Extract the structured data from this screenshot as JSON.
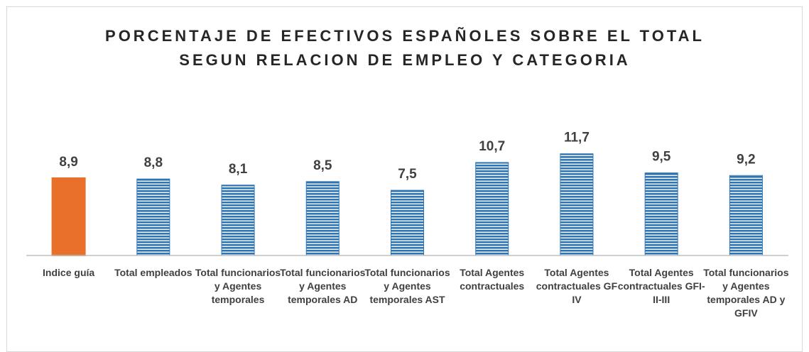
{
  "chart_data": {
    "type": "bar",
    "title": [
      "PORCENTAJE DE EFECTIVOS ESPAÑOLES SOBRE EL TOTAL",
      "SEGUN RELACION DE EMPLEO Y CATEGORIA"
    ],
    "categories": [
      "Indice guía",
      "Total empleados",
      "Total funcionarios y Agentes temporales",
      "Total funcionarios y Agentes temporales AD",
      "Total funcionarios y Agentes temporales AST",
      "Total Agentes contractuales",
      "Total Agentes contractuales GF IV",
      "Total Agentes contractuales GFI-II-III",
      "Total funcionarios y Agentes temporales AD y GFIV"
    ],
    "values": [
      8.9,
      8.8,
      8.1,
      8.5,
      7.5,
      10.7,
      11.7,
      9.5,
      9.2
    ],
    "value_labels": [
      "8,9",
      "8,8",
      "8,1",
      "8,5",
      "7,5",
      "10,7",
      "11,7",
      "9,5",
      "9,2"
    ],
    "colors": [
      "#E8702A",
      "#2E75B6",
      "#2E75B6",
      "#2E75B6",
      "#2E75B6",
      "#2E75B6",
      "#2E75B6",
      "#2E75B6",
      "#2E75B6"
    ],
    "fills": [
      "solid",
      "striped",
      "striped",
      "striped",
      "striped",
      "striped",
      "striped",
      "striped",
      "striped"
    ],
    "ylim": [
      0,
      16
    ]
  }
}
